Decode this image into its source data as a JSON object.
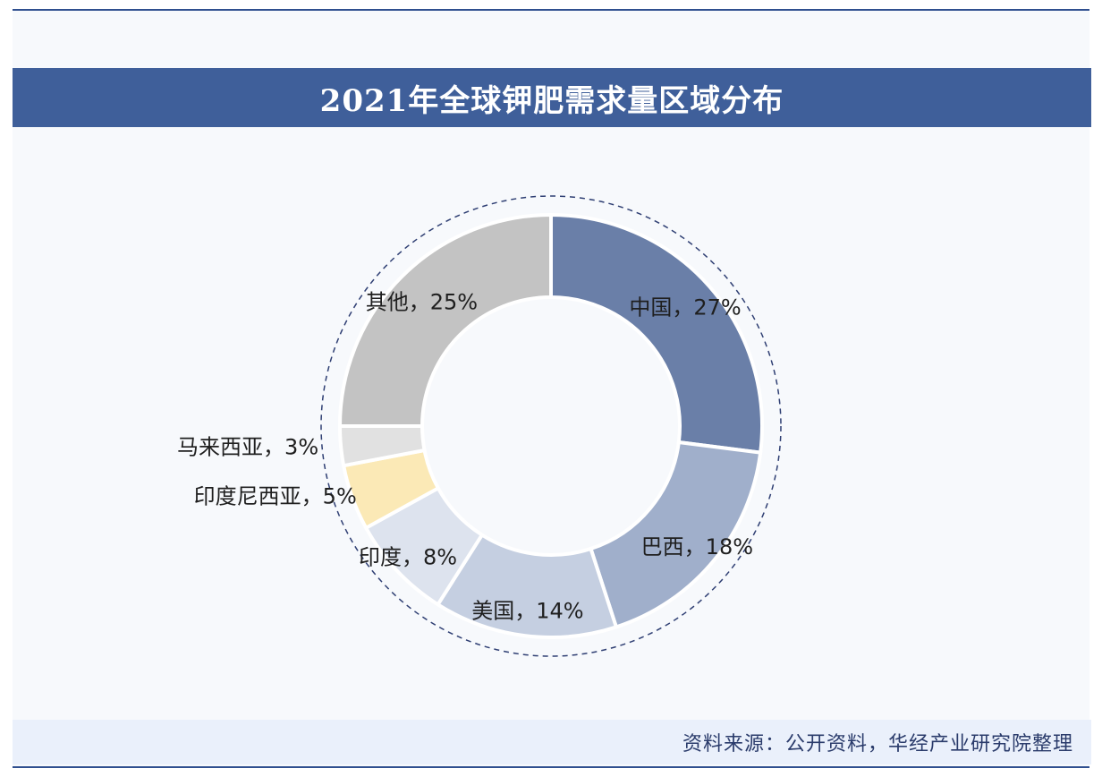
{
  "title": "2021年全球钾肥需求量区域分布",
  "source": "资料来源：公开资料，华经产业研究院整理",
  "chart_data": {
    "type": "pie",
    "variant": "donut",
    "title": "2021年全球钾肥需求量区域分布",
    "slices": [
      {
        "label": "中国",
        "value": 27,
        "text": "中国，27%",
        "color": "#6a7fa8"
      },
      {
        "label": "巴西",
        "value": 18,
        "text": "巴西，18%",
        "color": "#a0afcb"
      },
      {
        "label": "美国",
        "value": 14,
        "text": "美国，14%",
        "color": "#c5cfe1"
      },
      {
        "label": "印度",
        "value": 8,
        "text": "印度，8%",
        "color": "#dde3ee"
      },
      {
        "label": "印度尼西亚",
        "value": 5,
        "text": "印度尼西亚，5%",
        "color": "#fbe9b6"
      },
      {
        "label": "马来西亚",
        "value": 3,
        "text": "马来西亚，3%",
        "color": "#e1e1e1"
      },
      {
        "label": "其他",
        "value": 25,
        "text": "其他，25%",
        "color": "#c3c3c3"
      }
    ]
  }
}
